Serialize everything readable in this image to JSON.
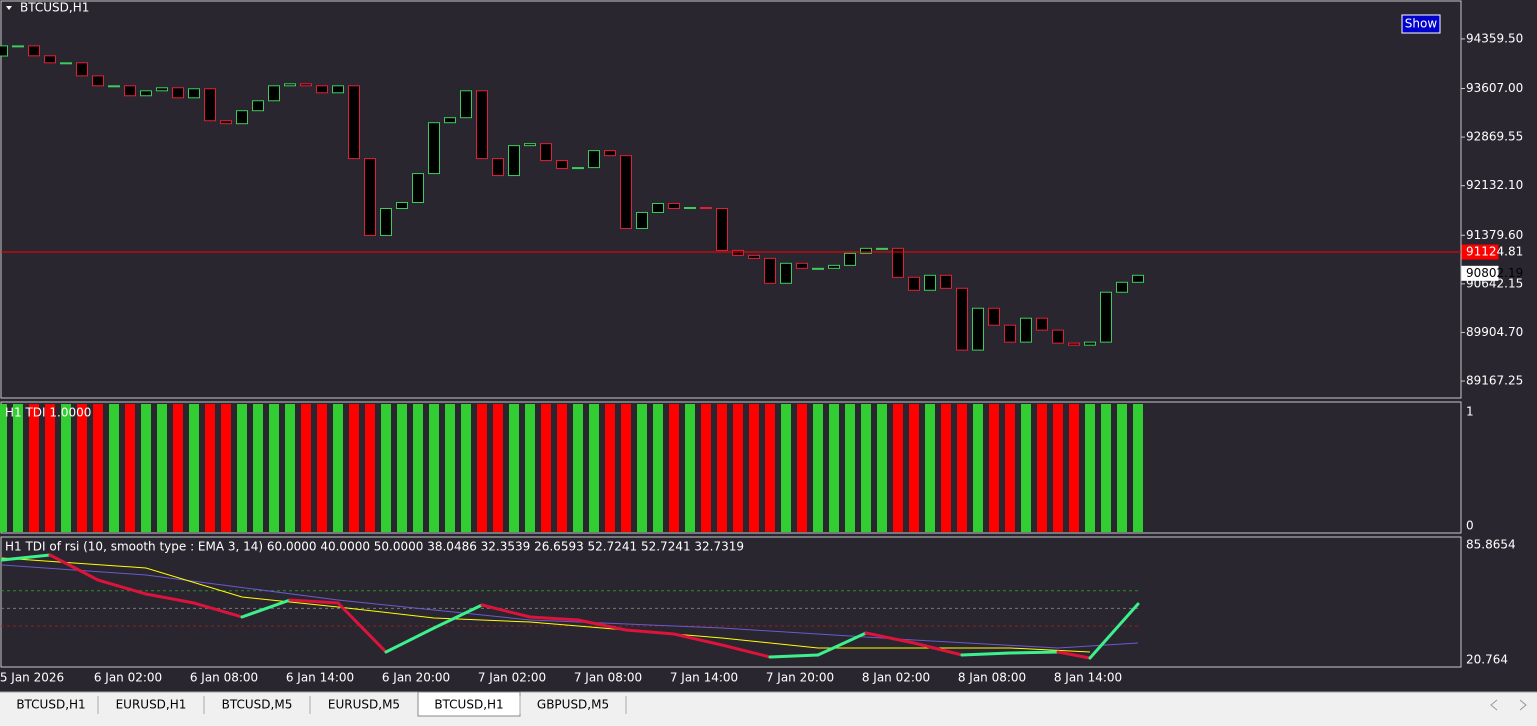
{
  "window": {
    "symbol_title": "BTCUSD,H1",
    "show_button": "Show"
  },
  "chart_data": [
    {
      "type": "candlestick",
      "open": [
        94100,
        94254,
        94254,
        94103,
        93997,
        93997,
        93799,
        93648,
        93648,
        93497,
        93572,
        93618,
        93466,
        93603,
        93118,
        93073,
        93270,
        93421,
        93648,
        93678,
        93648,
        93542,
        93648,
        92543,
        91377,
        91786,
        91877,
        92316,
        93088,
        93164,
        93572,
        92543,
        92286,
        92740,
        92770,
        92513,
        92392,
        92407,
        92664,
        92588,
        91483,
        91726,
        91862,
        91786,
        91801,
        91786,
        91150,
        91075,
        91029,
        90651,
        90954,
        90878,
        90878,
        90923,
        91105,
        91181,
        91181,
        90742,
        90545,
        90772,
        90575,
        89637,
        90272,
        90015,
        89758,
        90121,
        89940,
        89743,
        89712,
        89758,
        90515,
        90666
      ],
      "close": [
        94254,
        94254,
        94103,
        93997,
        93997,
        93799,
        93648,
        93648,
        93497,
        93572,
        93618,
        93466,
        93603,
        93118,
        93073,
        93270,
        93421,
        93648,
        93678,
        93648,
        93542,
        93648,
        92543,
        91377,
        91786,
        91877,
        92316,
        93088,
        93164,
        93572,
        92543,
        92286,
        92740,
        92770,
        92513,
        92392,
        92407,
        92664,
        92588,
        91483,
        91726,
        91862,
        91786,
        91801,
        91786,
        91150,
        91075,
        91029,
        90651,
        90954,
        90878,
        90878,
        90923,
        91105,
        91181,
        91181,
        90742,
        90545,
        90772,
        90575,
        89637,
        90272,
        90015,
        89758,
        90121,
        89940,
        89743,
        89712,
        89758,
        90515,
        90666,
        90772
      ],
      "up_color": "#3dcc5c",
      "down_color": "#e0203a",
      "ylim": [
        88910,
        94935
      ],
      "yticks": [
        {
          "value": 94359.5,
          "label": "94359.50"
        },
        {
          "value": 93607,
          "label": "93607.00"
        },
        {
          "value": 92869.55,
          "label": "92869.55"
        },
        {
          "value": 92132.1,
          "label": "92132.10"
        },
        {
          "value": 91379.6,
          "label": "91379.60"
        },
        {
          "value": 90642.15,
          "label": "90642.15"
        },
        {
          "value": 89904.7,
          "label": "89904.70"
        },
        {
          "value": 89167.25,
          "label": "89167.25"
        }
      ],
      "price_lines": [
        {
          "value": 91124.81,
          "label": "91124.81",
          "color": "#ff0000"
        },
        {
          "value": 90802.19,
          "label": "90802.19",
          "color": "#ffffff"
        }
      ]
    },
    {
      "type": "bar",
      "title": "H1  TDI  1.0000",
      "values": [
        1,
        1,
        1,
        1,
        1,
        1,
        1,
        1,
        1,
        1,
        1,
        1,
        1,
        1,
        1,
        1,
        1,
        1,
        1,
        1,
        1,
        1,
        1,
        1,
        1,
        1,
        1,
        1,
        1,
        1,
        1,
        1,
        1,
        1,
        1,
        1,
        1,
        1,
        1,
        1,
        1,
        1,
        1,
        1,
        1,
        1,
        1,
        1,
        1,
        1,
        1,
        1,
        1,
        1,
        1,
        1,
        1,
        1,
        1,
        1,
        1,
        1,
        1,
        1,
        1,
        1,
        1,
        1,
        1,
        1,
        1,
        1
      ],
      "up_color": "#32cd32",
      "down_color": "#ff0000",
      "ylim": [
        0,
        1
      ],
      "yticks": [
        1,
        0
      ]
    },
    {
      "type": "line",
      "title": "H1  TDI of rsi  (10, smooth type : EMA 3, 14) 60.0000 40.0000 50.0000 38.0486 32.3539 26.6593 52.7241 52.7241 32.7319",
      "series": [
        {
          "color": "#dc143c",
          "up_color": "#3cf08c",
          "width": 3,
          "x": [
            0,
            3,
            6,
            9,
            12,
            15,
            18,
            21,
            24,
            27,
            30,
            33,
            36,
            39,
            42,
            45,
            48,
            51,
            54,
            57,
            60,
            63,
            66,
            68,
            71
          ],
          "values": [
            77.37,
            80.2,
            66.05,
            58.12,
            53.03,
            45.11,
            54.73,
            53.03,
            25.29,
            38.88,
            51.9,
            45.11,
            43.41,
            37.75,
            35.48,
            29.26,
            22.47,
            23.6,
            36.05,
            30.39,
            23.6,
            24.73,
            25.29,
            21.9,
            52.47
          ]
        },
        {
          "color": "#ffff00",
          "width": 1,
          "x": [
            0,
            9,
            15,
            21,
            27,
            33,
            39,
            45,
            51,
            57,
            63,
            68
          ],
          "values": [
            78.51,
            72.85,
            56.43,
            50.77,
            44.54,
            42.27,
            37.75,
            33.22,
            27.56,
            27.56,
            27.56,
            25.29
          ]
        },
        {
          "color": "#6a5acd",
          "width": 1,
          "x": [
            0,
            9,
            21,
            33,
            45,
            57,
            66,
            71
          ],
          "values": [
            74.54,
            68.88,
            54.73,
            43.41,
            38.88,
            32.08,
            27.56,
            30.39
          ]
        }
      ],
      "levels": [
        {
          "value": 60,
          "color": "#2e8b2e"
        },
        {
          "value": 50,
          "color": "#777777"
        },
        {
          "value": 40,
          "color": "#8b2020"
        }
      ],
      "ylim": [
        20.764,
        85.8654
      ],
      "yticks": [
        85.8654,
        20.764
      ]
    }
  ],
  "time_axis": [
    "5 Jan 2026",
    "6 Jan 02:00",
    "6 Jan 08:00",
    "6 Jan 14:00",
    "6 Jan 20:00",
    "7 Jan 02:00",
    "7 Jan 08:00",
    "7 Jan 14:00",
    "7 Jan 20:00",
    "8 Jan 02:00",
    "8 Jan 08:00",
    "8 Jan 14:00"
  ],
  "tabs": [
    "BTCUSD,H1",
    "EURUSD,H1",
    "BTCUSD,M5",
    "EURUSD,M5",
    "BTCUSD,H1",
    "GBPUSD,M5"
  ],
  "active_tab": 4
}
